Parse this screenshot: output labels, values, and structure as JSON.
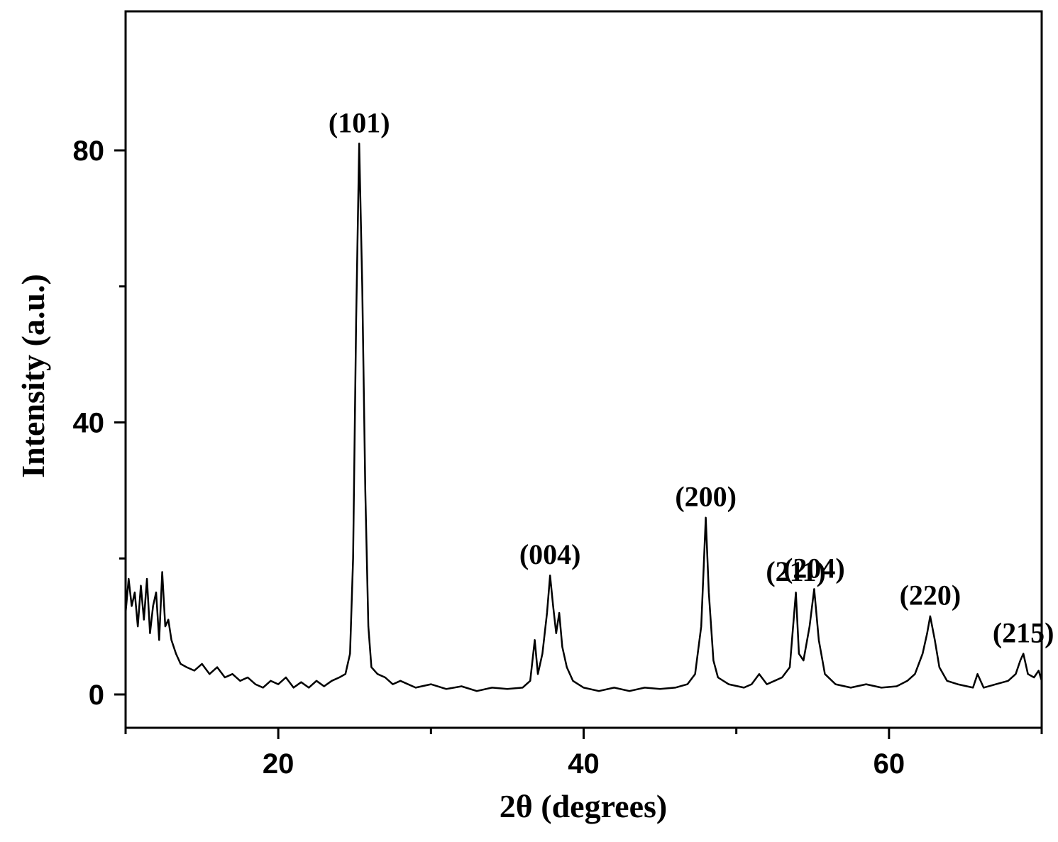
{
  "chart_data": {
    "type": "line",
    "title": "",
    "xlabel": "2θ (degrees)",
    "ylabel": "Intensity (a.u.)",
    "xlim": [
      10,
      70
    ],
    "ylim": [
      -5,
      100
    ],
    "x_ticks": [
      20,
      40,
      60
    ],
    "x_tick_labels": [
      "20",
      "40",
      "60"
    ],
    "x_minor_ticks": [
      10,
      30,
      50,
      70
    ],
    "y_ticks": [
      0,
      40,
      80
    ],
    "y_tick_labels": [
      "0",
      "40",
      "80"
    ],
    "y_minor_ticks": [
      20,
      60
    ],
    "grid": false,
    "legend": "none",
    "line_color": "#000000",
    "peaks": [
      {
        "label": "(101)",
        "x": 25.3,
        "y": 81
      },
      {
        "label": "(004)",
        "x": 37.8,
        "y": 17.5
      },
      {
        "label": "(200)",
        "x": 48.0,
        "y": 26
      },
      {
        "label": "(211)",
        "x": 53.9,
        "y": 15
      },
      {
        "label": "(204)",
        "x": 55.1,
        "y": 15.5
      },
      {
        "label": "(220)",
        "x": 62.7,
        "y": 11.5
      },
      {
        "label": "(215)",
        "x": 68.8,
        "y": 6
      }
    ],
    "series": [
      {
        "values": [
          [
            10.0,
            12
          ],
          [
            10.2,
            17
          ],
          [
            10.4,
            13
          ],
          [
            10.6,
            15
          ],
          [
            10.8,
            10
          ],
          [
            11.0,
            16
          ],
          [
            11.2,
            11
          ],
          [
            11.4,
            17
          ],
          [
            11.6,
            9
          ],
          [
            11.8,
            13
          ],
          [
            12.0,
            15
          ],
          [
            12.2,
            8
          ],
          [
            12.4,
            18
          ],
          [
            12.6,
            10
          ],
          [
            12.8,
            11
          ],
          [
            13.0,
            8
          ],
          [
            13.3,
            6
          ],
          [
            13.6,
            4.5
          ],
          [
            14.0,
            4
          ],
          [
            14.5,
            3.5
          ],
          [
            15.0,
            4.5
          ],
          [
            15.5,
            3
          ],
          [
            16.0,
            4
          ],
          [
            16.5,
            2.5
          ],
          [
            17.0,
            3
          ],
          [
            17.5,
            2
          ],
          [
            18.0,
            2.5
          ],
          [
            18.5,
            1.5
          ],
          [
            19.0,
            1
          ],
          [
            19.5,
            2
          ],
          [
            20.0,
            1.5
          ],
          [
            20.5,
            2.5
          ],
          [
            21.0,
            1
          ],
          [
            21.5,
            1.8
          ],
          [
            22.0,
            1
          ],
          [
            22.5,
            2
          ],
          [
            23.0,
            1.2
          ],
          [
            23.5,
            2
          ],
          [
            24.0,
            2.5
          ],
          [
            24.4,
            3
          ],
          [
            24.7,
            6
          ],
          [
            24.9,
            20
          ],
          [
            25.1,
            55
          ],
          [
            25.3,
            81
          ],
          [
            25.5,
            60
          ],
          [
            25.7,
            30
          ],
          [
            25.9,
            10
          ],
          [
            26.1,
            4
          ],
          [
            26.5,
            3
          ],
          [
            27.0,
            2.5
          ],
          [
            27.5,
            1.5
          ],
          [
            28.0,
            2
          ],
          [
            29.0,
            1
          ],
          [
            30.0,
            1.5
          ],
          [
            31.0,
            0.8
          ],
          [
            32.0,
            1.2
          ],
          [
            33.0,
            0.5
          ],
          [
            34.0,
            1
          ],
          [
            35.0,
            0.8
          ],
          [
            36.0,
            1
          ],
          [
            36.5,
            2
          ],
          [
            36.8,
            8
          ],
          [
            37.0,
            3
          ],
          [
            37.3,
            6
          ],
          [
            37.6,
            12
          ],
          [
            37.8,
            17.5
          ],
          [
            38.0,
            13
          ],
          [
            38.2,
            9
          ],
          [
            38.4,
            12
          ],
          [
            38.6,
            7
          ],
          [
            38.9,
            4
          ],
          [
            39.3,
            2
          ],
          [
            40.0,
            1
          ],
          [
            41.0,
            0.5
          ],
          [
            42.0,
            1
          ],
          [
            43.0,
            0.5
          ],
          [
            44.0,
            1
          ],
          [
            45.0,
            0.8
          ],
          [
            46.0,
            1
          ],
          [
            46.8,
            1.5
          ],
          [
            47.3,
            3
          ],
          [
            47.7,
            10
          ],
          [
            48.0,
            26
          ],
          [
            48.2,
            15
          ],
          [
            48.5,
            5
          ],
          [
            48.8,
            2.5
          ],
          [
            49.5,
            1.5
          ],
          [
            50.5,
            1
          ],
          [
            51.0,
            1.5
          ],
          [
            51.5,
            3
          ],
          [
            52.0,
            1.5
          ],
          [
            52.5,
            2
          ],
          [
            53.0,
            2.5
          ],
          [
            53.5,
            4
          ],
          [
            53.9,
            15
          ],
          [
            54.1,
            6
          ],
          [
            54.4,
            5
          ],
          [
            54.8,
            10
          ],
          [
            55.1,
            15.5
          ],
          [
            55.4,
            8
          ],
          [
            55.8,
            3
          ],
          [
            56.5,
            1.5
          ],
          [
            57.5,
            1
          ],
          [
            58.5,
            1.5
          ],
          [
            59.5,
            1
          ],
          [
            60.5,
            1.2
          ],
          [
            61.2,
            2
          ],
          [
            61.7,
            3
          ],
          [
            62.2,
            6
          ],
          [
            62.5,
            9
          ],
          [
            62.7,
            11.5
          ],
          [
            63.0,
            8
          ],
          [
            63.3,
            4
          ],
          [
            63.8,
            2
          ],
          [
            64.5,
            1.5
          ],
          [
            65.5,
            1
          ],
          [
            65.8,
            3
          ],
          [
            66.2,
            1
          ],
          [
            67.0,
            1.5
          ],
          [
            67.8,
            2
          ],
          [
            68.3,
            3
          ],
          [
            68.6,
            5
          ],
          [
            68.8,
            6
          ],
          [
            69.1,
            3
          ],
          [
            69.5,
            2.5
          ],
          [
            69.8,
            3.5
          ],
          [
            70.0,
            2
          ]
        ]
      }
    ]
  }
}
